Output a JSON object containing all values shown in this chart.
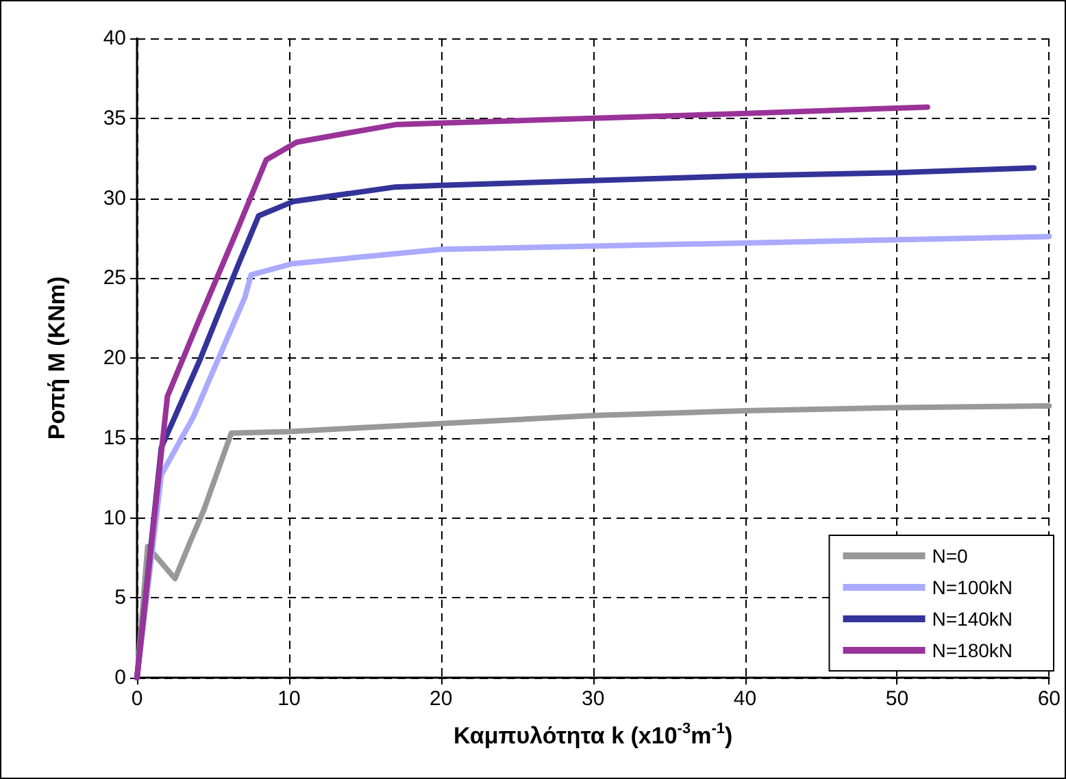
{
  "chart_data": {
    "type": "line",
    "xlabel": "Καμπυλότητα k (x10$^{-3}$m$^{-1}$)",
    "ylabel": "Ροπή Μ (KNm)",
    "xlim": [
      0,
      60
    ],
    "xticks": [
      0,
      10,
      20,
      30,
      40,
      50,
      60
    ],
    "ylim": [
      0,
      40
    ],
    "yticks": [
      0,
      5,
      10,
      15,
      20,
      25,
      30,
      35,
      40
    ],
    "grid": true,
    "legend": "bottom right",
    "marker": "none",
    "line_style": "solid",
    "series": [
      {
        "name": "N=0",
        "color": "#999999",
        "x": [
          0,
          0.7,
          2.5,
          3.5,
          4.4,
          6.2,
          10,
          20,
          30,
          40,
          50,
          60
        ],
        "values": [
          0,
          8.2,
          6.2,
          8.5,
          10.5,
          15.3,
          15.4,
          15.9,
          16.4,
          16.7,
          16.9,
          17.0
        ]
      },
      {
        "name": "N=100kN",
        "color": "#aaaaff",
        "x": [
          0,
          1.6,
          3.7,
          5.6,
          7.1,
          7.5,
          10.2,
          20,
          30,
          40,
          50,
          60
        ],
        "values": [
          0,
          12.7,
          16.3,
          20.5,
          23.8,
          25.2,
          25.9,
          26.8,
          27.0,
          27.2,
          27.4,
          27.6
        ]
      },
      {
        "name": "N=140kN",
        "color": "#333399",
        "x": [
          0,
          1.6,
          4.1,
          6.6,
          8.0,
          10.3,
          17,
          20,
          30,
          40,
          50,
          59
        ],
        "values": [
          0,
          14.4,
          19.8,
          25.7,
          28.9,
          29.8,
          30.7,
          30.8,
          31.1,
          31.4,
          31.6,
          31.9
        ]
      },
      {
        "name": "N=180kN",
        "color": "#993399",
        "x": [
          0,
          2.0,
          4.0,
          6.5,
          8.5,
          10.5,
          14,
          17,
          20,
          30,
          40,
          52
        ],
        "values": [
          0,
          17.6,
          22.2,
          27.8,
          32.4,
          33.5,
          34.1,
          34.6,
          34.7,
          35.0,
          35.3,
          35.7
        ]
      }
    ]
  }
}
